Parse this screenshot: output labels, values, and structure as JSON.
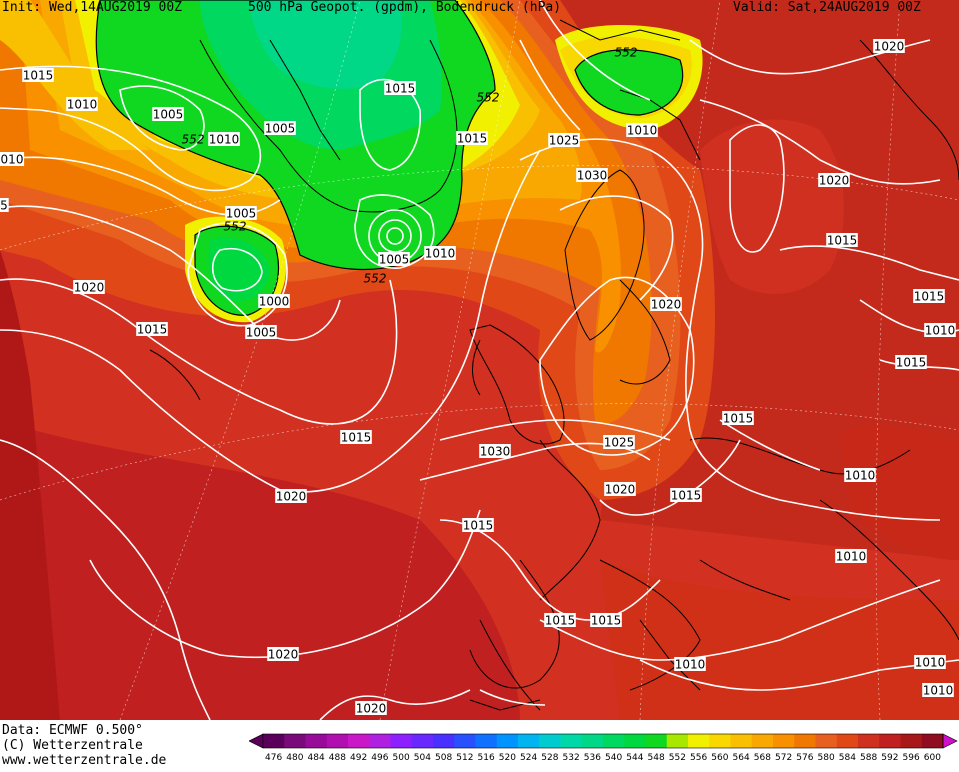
{
  "header": {
    "init": "Init: Wed,14AUG2019 00Z",
    "title": "500 hPa Geopot. (gpdm), Bodendruck (hPa)",
    "valid": "Valid: Sat,24AUG2019 00Z"
  },
  "footer": {
    "data_source": "Data: ECMWF  0.500°",
    "copyright": "(C) Wetterzentrale",
    "website": "www.wetterzentrale.de"
  },
  "colorbar": {
    "ticks": [
      "476",
      "480",
      "484",
      "488",
      "492",
      "496",
      "500",
      "504",
      "508",
      "512",
      "516",
      "520",
      "524",
      "528",
      "532",
      "536",
      "540",
      "544",
      "548",
      "552",
      "556",
      "560",
      "564",
      "568",
      "572",
      "576",
      "580",
      "584",
      "588",
      "592",
      "596",
      "600"
    ],
    "colors": [
      "#5a005a",
      "#7a0a7a",
      "#980a98",
      "#b010b0",
      "#c818c8",
      "#b020e0",
      "#8c20ff",
      "#6a28ff",
      "#4a30ff",
      "#2850ff",
      "#1070ff",
      "#0094ff",
      "#00b4f0",
      "#00ccd0",
      "#00d8a8",
      "#00d888",
      "#00d860",
      "#00d840",
      "#10d820",
      "#a8e800",
      "#f0f000",
      "#f8d800",
      "#f8c000",
      "#f8a800",
      "#f89000",
      "#f07800",
      "#e86020",
      "#e04818",
      "#d03020",
      "#c02020",
      "#a81818",
      "#900c20"
    ],
    "accent": "#cc10cc"
  },
  "isobars": {
    "labels": [
      "1015",
      "1010",
      "010",
      "5",
      "1005",
      "552",
      "1010",
      "1005",
      "1015",
      "552",
      "1015",
      "1025",
      "1030",
      "552",
      "1020",
      "1010",
      "1020",
      "1015",
      "1020",
      "1005",
      "552",
      "1005",
      "1010",
      "1000",
      "1005",
      "552",
      "1020",
      "1015",
      "1015",
      "1015",
      "1030",
      "1025",
      "1020",
      "1015",
      "1015",
      "1020",
      "1010",
      "1015",
      "1010",
      "1010",
      "1020",
      "1015",
      "1015",
      "1010",
      "1010",
      "1010",
      "1015",
      "1020"
    ]
  }
}
